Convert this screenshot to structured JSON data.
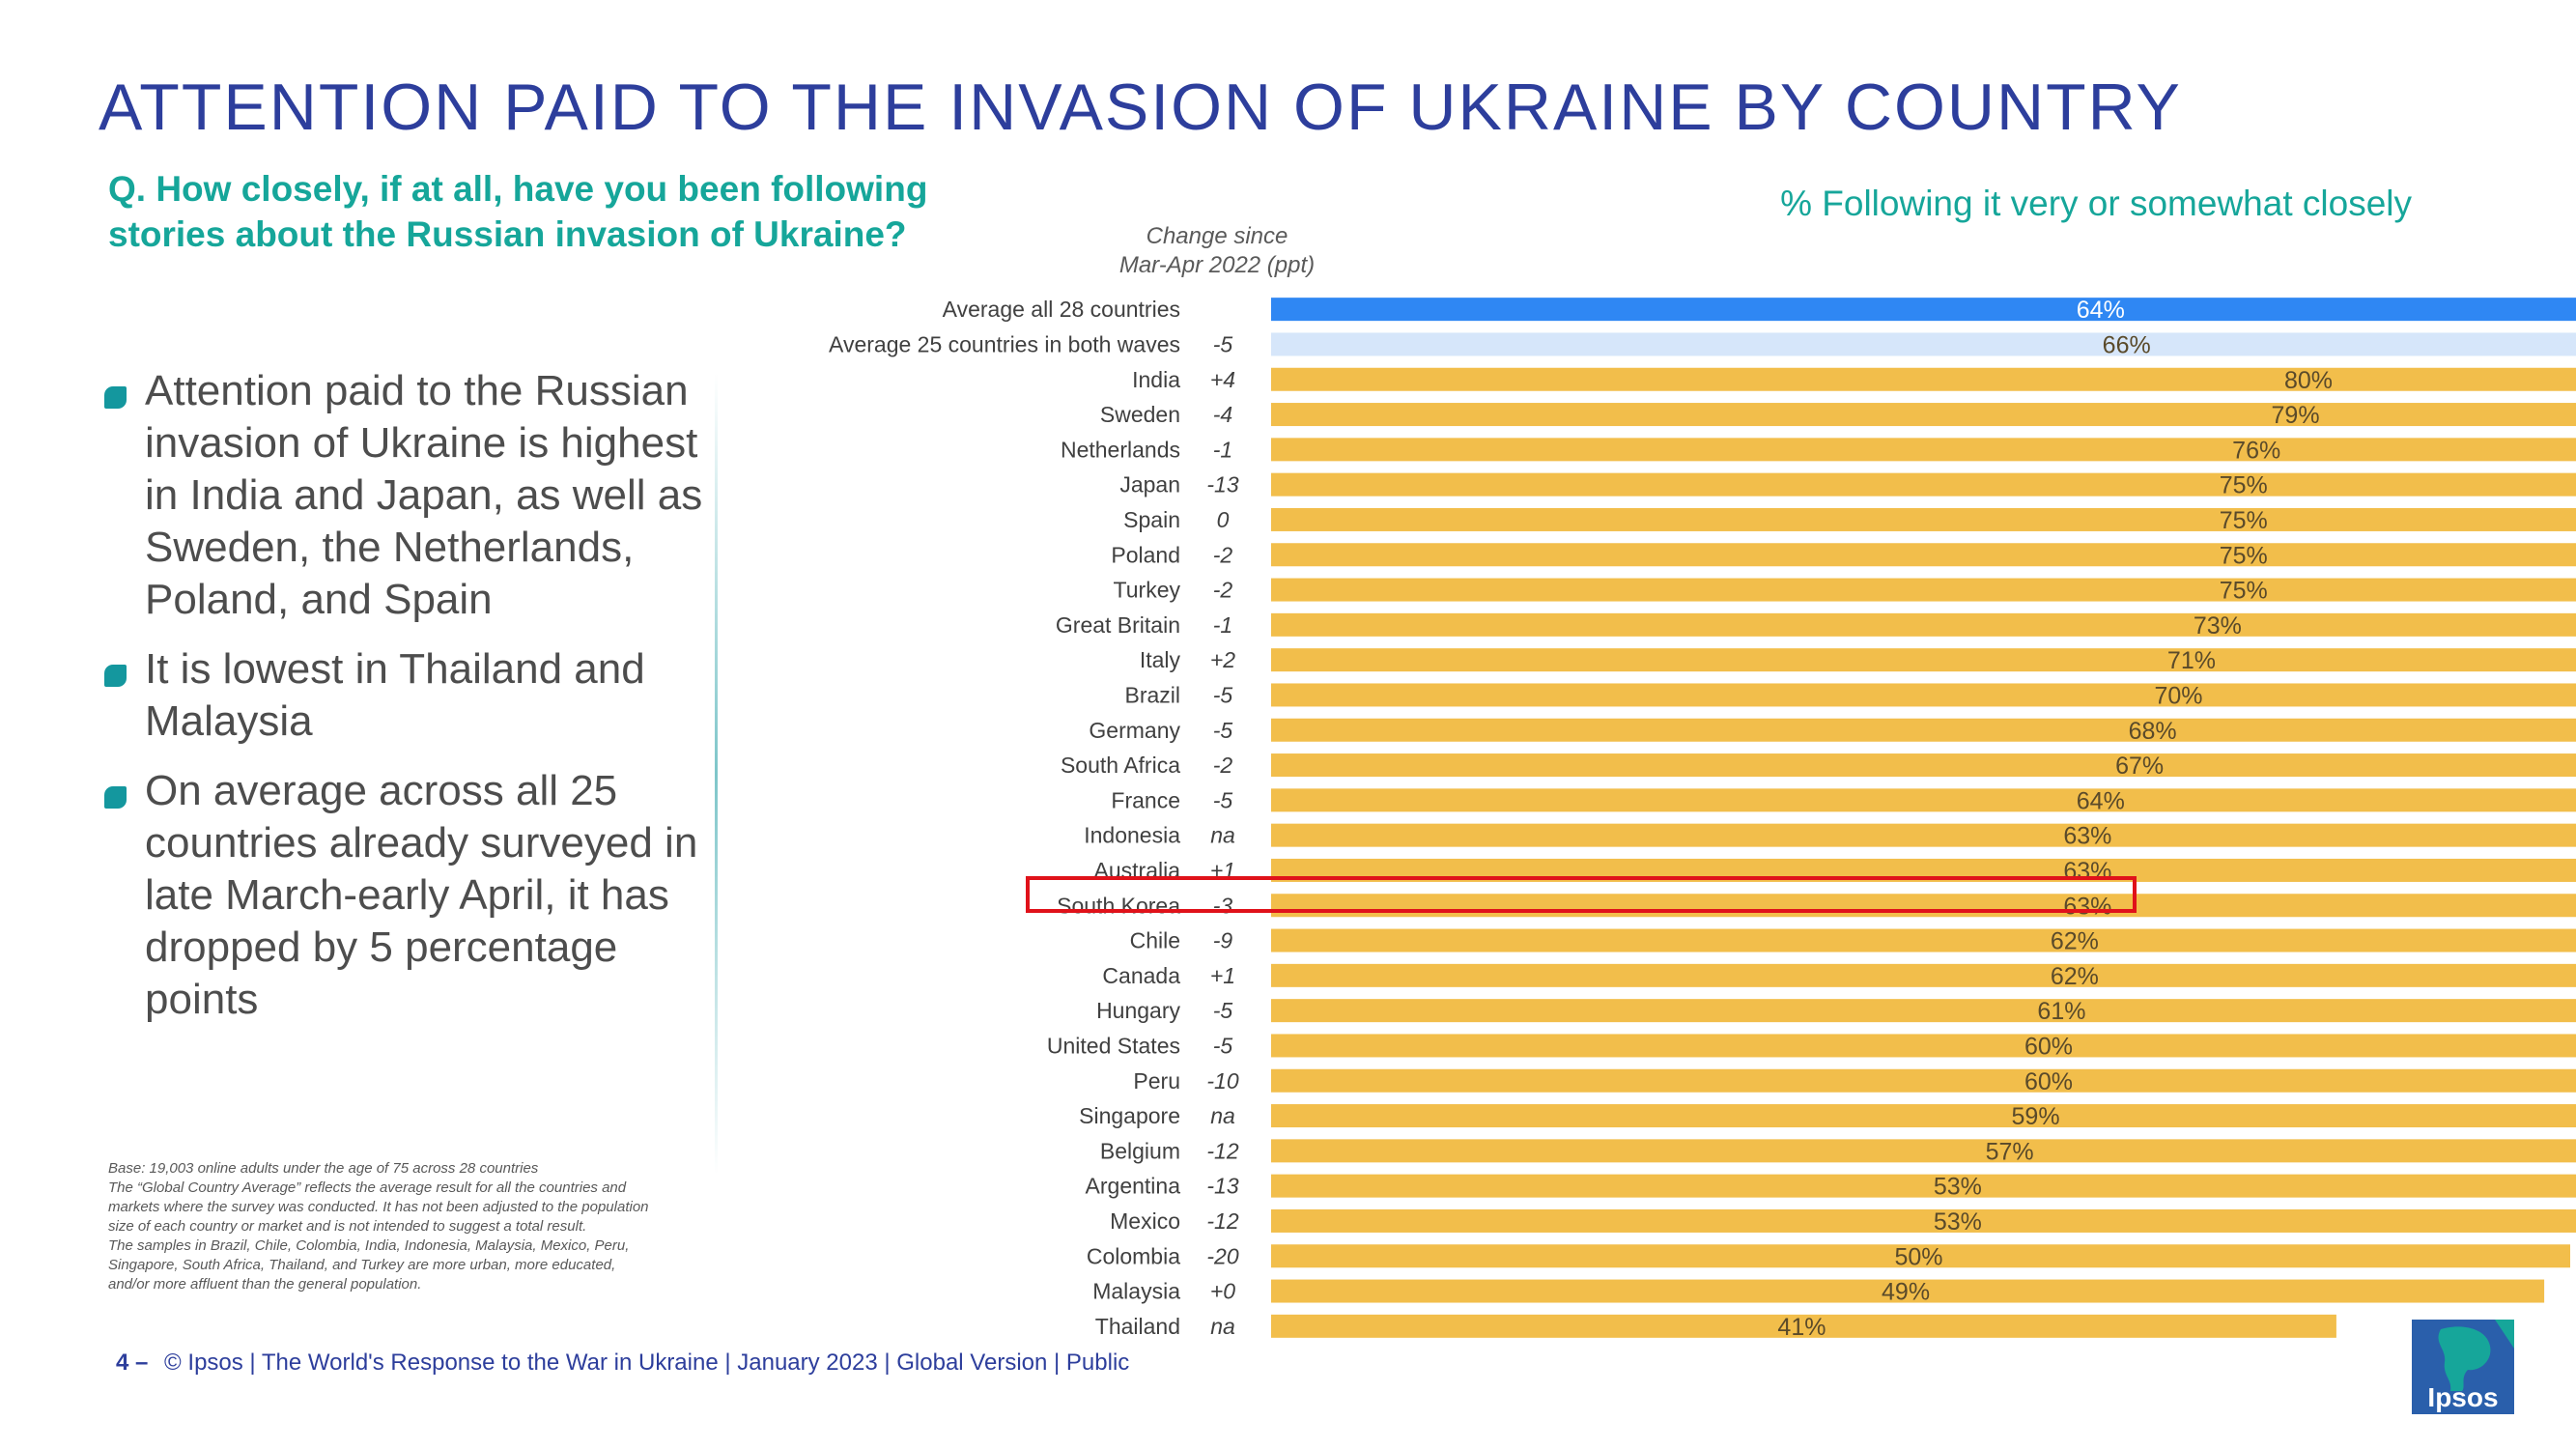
{
  "title": "ATTENTION PAID TO THE INVASION OF UKRAINE BY COUNTRY",
  "question": "Q. How closely, if at all, have you been following stories about the Russian invasion of Ukraine?",
  "metric_label": "% Following it very or somewhat closely",
  "change_header": {
    "line1": "Change since",
    "line2": "Mar-Apr 2022 (ppt)"
  },
  "bullets": [
    "Attention paid to the Russian invasion of Ukraine is highest in India and Japan, as well as Sweden, the Netherlands, Poland, and Spain",
    "It is lowest in Thailand and Malaysia",
    "On average across all 25 countries already surveyed in late March-early April, it has dropped by 5 percentage points"
  ],
  "base_note": [
    "Base: 19,003 online adults under the age of 75 across 28 countries",
    "The “Global Country Average” reflects the average result for all the countries and markets where the survey was conducted. It has not been adjusted to the population size of each country or market and is not intended to suggest a total result.",
    "The samples in Brazil, Chile, Colombia, India, Indonesia, Malaysia, Mexico, Peru, Singapore, South Africa, Thailand, and Turkey are more urban, more educated, and/or more affluent than the general population."
  ],
  "footer": {
    "page": "4 –",
    "text": "© Ipsos | The World's Response to the War in Ukraine | January 2023 | Global Version | Public"
  },
  "logo_text": "Ipsos",
  "colors": {
    "title": "#2d3e9c",
    "accent_teal": "#16a69a",
    "bar_average": "#2f87f3",
    "bar_average_both_waves": "#d6e6fa",
    "bar_country": "#f2be4b",
    "highlight": "#e0121a",
    "logo_bg": "#2a5fab",
    "logo_accent": "#16a69a"
  },
  "chart_data": {
    "type": "bar",
    "orientation": "horizontal",
    "categories": [
      "Average all 28 countries",
      "Average 25 countries in both waves",
      "India",
      "Sweden",
      "Netherlands",
      "Japan",
      "Spain",
      "Poland",
      "Turkey",
      "Great Britain",
      "Italy",
      "Brazil",
      "Germany",
      "South Africa",
      "France",
      "Indonesia",
      "Australia",
      "South Korea",
      "Chile",
      "Canada",
      "Hungary",
      "United States",
      "Peru",
      "Singapore",
      "Belgium",
      "Argentina",
      "Mexico",
      "Colombia",
      "Malaysia",
      "Thailand"
    ],
    "values": [
      64,
      66,
      80,
      79,
      76,
      75,
      75,
      75,
      75,
      73,
      71,
      70,
      68,
      67,
      64,
      63,
      63,
      63,
      62,
      62,
      61,
      60,
      60,
      59,
      57,
      53,
      53,
      50,
      49,
      41
    ],
    "value_labels": [
      "64%",
      "66%",
      "80%",
      "79%",
      "76%",
      "75%",
      "75%",
      "75%",
      "75%",
      "73%",
      "71%",
      "70%",
      "68%",
      "67%",
      "64%",
      "63%",
      "63%",
      "63%",
      "62%",
      "62%",
      "61%",
      "60%",
      "60%",
      "59%",
      "57%",
      "53%",
      "53%",
      "50%",
      "49%",
      "41%"
    ],
    "changes": [
      "",
      "-5",
      "+4",
      "-4",
      "-1",
      "-13",
      "0",
      "-2",
      "-2",
      "-1",
      "+2",
      "-5",
      "-5",
      "-2",
      "-5",
      "na",
      "+1",
      "-3",
      "-9",
      "+1",
      "-5",
      "-5",
      "-10",
      "na",
      "-12",
      "-13",
      "-12",
      "-20",
      "+0",
      "na"
    ],
    "bar_types": [
      "average",
      "average_both",
      "country",
      "country",
      "country",
      "country",
      "country",
      "country",
      "country",
      "country",
      "country",
      "country",
      "country",
      "country",
      "country",
      "country",
      "country",
      "country",
      "country",
      "country",
      "country",
      "country",
      "country",
      "country",
      "country",
      "country",
      "country",
      "country",
      "country",
      "country"
    ],
    "highlighted_category": "South Korea",
    "unit": "%",
    "xlim": [
      0,
      80
    ]
  }
}
